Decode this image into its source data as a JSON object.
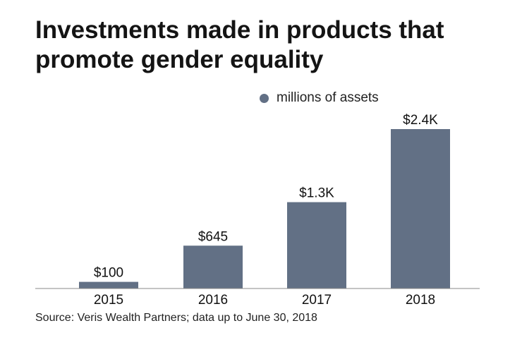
{
  "chart_data": {
    "type": "bar",
    "title": "Investments made in products that promote gender equality",
    "categories": [
      "2015",
      "2016",
      "2017",
      "2018"
    ],
    "series": [
      {
        "name": "millions of assets",
        "values": [
          100,
          645,
          1300,
          2400
        ]
      }
    ],
    "data_labels": [
      "$100",
      "$645",
      "$1.3K",
      "$2.4K"
    ],
    "xlabel": "",
    "ylabel": "",
    "ylim": [
      0,
      2400
    ],
    "grid": false,
    "legend": "top-right",
    "bar_color": "#627085",
    "source": "Source: Veris Wealth Partners; data up to June 30, 2018"
  }
}
